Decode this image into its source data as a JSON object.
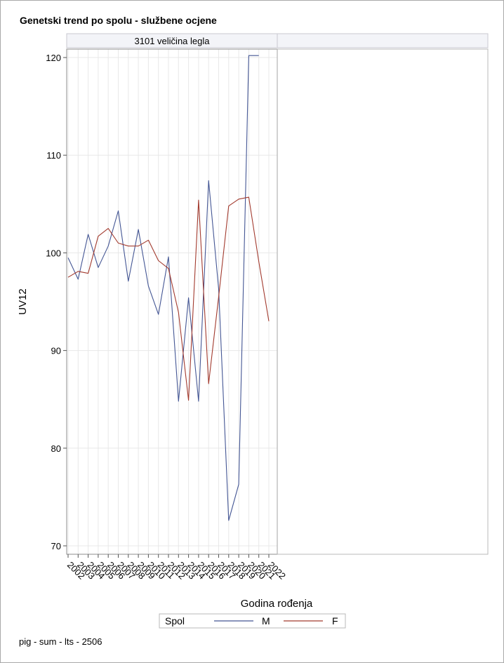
{
  "title": "Genetski trend po spolu - službene ocjene",
  "footnote": "pig - sum - lts - 2506",
  "panels": [
    "3101 veličina legla",
    ""
  ],
  "colors": {
    "M": "#445694",
    "F": "#a23a2e",
    "grid": "#e8e8e8",
    "frame": "#a0a0a0",
    "header_bg": "#f3f4f8"
  },
  "chart_data": {
    "type": "line",
    "title": "Genetski trend po spolu - službene ocjene",
    "xlabel": "Godina rođenja",
    "ylabel": "UV12",
    "ylim": [
      69.5,
      120.5
    ],
    "yticks": [
      70,
      80,
      90,
      100,
      110,
      120
    ],
    "categories": [
      "2002",
      "2003",
      "2004",
      "2005",
      "2006",
      "2007",
      "2008",
      "2009",
      "2010",
      "2011",
      "2012",
      "2013",
      "2014",
      "2015",
      "2016",
      "2017",
      "2018",
      "2019",
      "2020",
      "2021",
      "2022"
    ],
    "legend": {
      "title": "Spol",
      "position": "bottom"
    },
    "grid": true,
    "series": [
      {
        "name": "M",
        "color": "#445694",
        "values": [
          99.5,
          97.3,
          101.9,
          98.5,
          100.7,
          104.3,
          97.1,
          102.4,
          96.6,
          93.7,
          99.6,
          84.8,
          95.4,
          84.8,
          107.4,
          96.3,
          72.6,
          76.3,
          120.2,
          120.2,
          null
        ]
      },
      {
        "name": "F",
        "color": "#a23a2e",
        "values": [
          97.5,
          98.1,
          97.9,
          101.7,
          102.5,
          101.0,
          100.7,
          100.7,
          101.3,
          99.2,
          98.4,
          93.9,
          84.9,
          105.4,
          86.6,
          95.5,
          104.8,
          105.5,
          105.7,
          99.1,
          93.0
        ]
      }
    ]
  }
}
